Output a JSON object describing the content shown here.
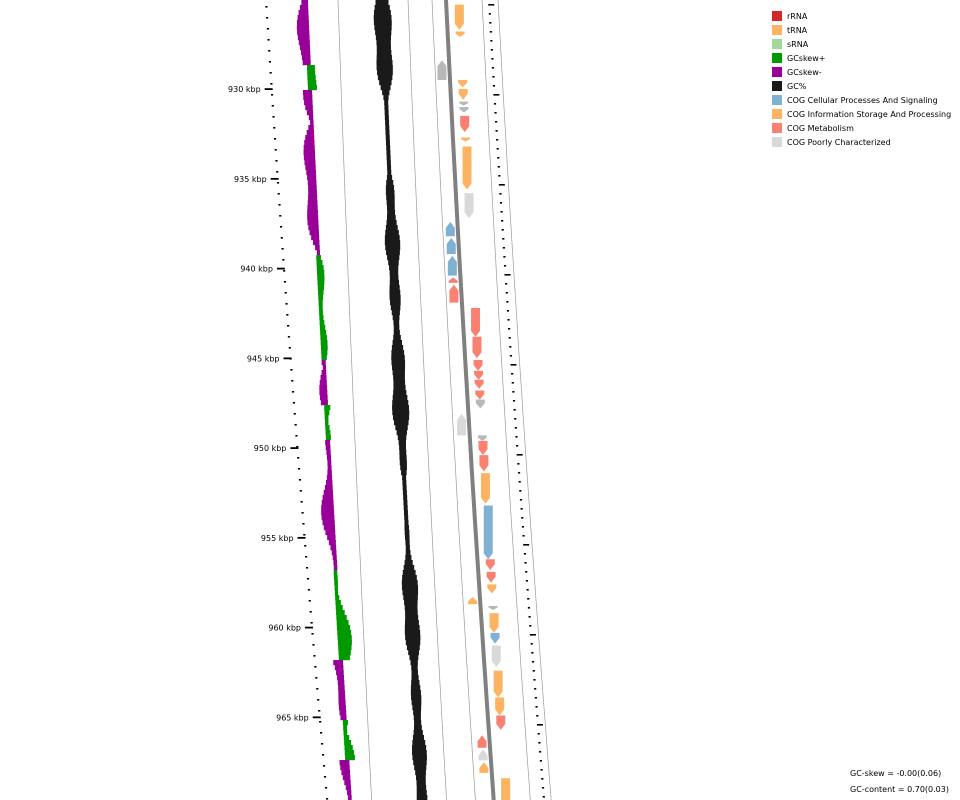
{
  "legend": [
    {
      "label": "rRNA",
      "color": "#d62728"
    },
    {
      "label": "tRNA",
      "color": "#fdb462"
    },
    {
      "label": "sRNA",
      "color": "#a1d99b"
    },
    {
      "label": "GCskew+",
      "color": "#009900"
    },
    {
      "label": "GCskew-",
      "color": "#990099"
    },
    {
      "label": "GC%",
      "color": "#1a1a1a"
    },
    {
      "label": "COG Cellular Processes And Signaling",
      "color": "#80b1d3"
    },
    {
      "label": "COG Information Storage And Processing",
      "color": "#fdb462"
    },
    {
      "label": "COG Metabolism",
      "color": "#fa8072"
    },
    {
      "label": "COG Poorly Characterized",
      "color": "#d9d9d9"
    }
  ],
  "stats": {
    "gc_skew": "GC-skew = -0.00(0.06)",
    "gc_content": "GC-content = 0.70(0.03)"
  },
  "axis": {
    "unit": "kbp",
    "labels": [
      "930 kbp",
      "935 kbp",
      "940 kbp",
      "945 kbp",
      "950 kbp",
      "955 kbp",
      "960 kbp",
      "965 kbp"
    ],
    "label_positions_kbp": [
      930,
      935,
      940,
      945,
      950,
      955,
      960,
      965
    ]
  },
  "features": [
    {
      "start": 925.3,
      "end": 926.7,
      "strand": "+",
      "cog": "COG Information Storage And Processing"
    },
    {
      "start": 926.8,
      "end": 927.1,
      "strand": "+",
      "cog": "COG Information Storage And Processing"
    },
    {
      "start": 928.4,
      "end": 929.5,
      "strand": "-",
      "cog": "other"
    },
    {
      "start": 929.5,
      "end": 929.9,
      "strand": "+",
      "cog": "COG Information Storage And Processing"
    },
    {
      "start": 930.0,
      "end": 930.6,
      "strand": "+",
      "cog": "COG Information Storage And Processing"
    },
    {
      "start": 930.7,
      "end": 930.9,
      "strand": "+",
      "cog": "other"
    },
    {
      "start": 931.0,
      "end": 931.3,
      "strand": "+",
      "cog": "other"
    },
    {
      "start": 931.5,
      "end": 932.4,
      "strand": "+",
      "cog": "COG Metabolism"
    },
    {
      "start": 932.7,
      "end": 932.9,
      "strand": "+",
      "cog": "COG Information Storage And Processing"
    },
    {
      "start": 933.2,
      "end": 935.6,
      "strand": "+",
      "cog": "COG Information Storage And Processing"
    },
    {
      "start": 935.8,
      "end": 937.2,
      "strand": "+",
      "cog": "COG Poorly Characterized"
    },
    {
      "start": 937.4,
      "end": 938.2,
      "strand": "-",
      "cog": "COG Cellular Processes And Signaling"
    },
    {
      "start": 938.3,
      "end": 939.2,
      "strand": "-",
      "cog": "COG Cellular Processes And Signaling"
    },
    {
      "start": 939.3,
      "end": 940.4,
      "strand": "-",
      "cog": "COG Cellular Processes And Signaling"
    },
    {
      "start": 940.5,
      "end": 940.8,
      "strand": "-",
      "cog": "COG Metabolism"
    },
    {
      "start": 940.9,
      "end": 941.9,
      "strand": "-",
      "cog": "COG Metabolism"
    },
    {
      "start": 942.2,
      "end": 943.8,
      "strand": "+",
      "cog": "COG Metabolism"
    },
    {
      "start": 943.8,
      "end": 945.0,
      "strand": "+",
      "cog": "COG Metabolism"
    },
    {
      "start": 945.1,
      "end": 945.7,
      "strand": "+",
      "cog": "COG Metabolism"
    },
    {
      "start": 945.7,
      "end": 946.2,
      "strand": "+",
      "cog": "COG Metabolism"
    },
    {
      "start": 946.2,
      "end": 946.7,
      "strand": "+",
      "cog": "COG Metabolism"
    },
    {
      "start": 946.8,
      "end": 947.3,
      "strand": "+",
      "cog": "COG Metabolism"
    },
    {
      "start": 947.3,
      "end": 947.8,
      "strand": "+",
      "cog": "other"
    },
    {
      "start": 948.1,
      "end": 949.3,
      "strand": "-",
      "cog": "COG Poorly Characterized"
    },
    {
      "start": 949.3,
      "end": 949.6,
      "strand": "+",
      "cog": "other"
    },
    {
      "start": 949.6,
      "end": 950.4,
      "strand": "+",
      "cog": "COG Metabolism"
    },
    {
      "start": 950.4,
      "end": 951.3,
      "strand": "+",
      "cog": "COG Metabolism"
    },
    {
      "start": 951.4,
      "end": 953.1,
      "strand": "+",
      "cog": "COG Information Storage And Processing"
    },
    {
      "start": 953.2,
      "end": 956.2,
      "strand": "+",
      "cog": "COG Cellular Processes And Signaling"
    },
    {
      "start": 956.2,
      "end": 956.8,
      "strand": "+",
      "cog": "COG Metabolism"
    },
    {
      "start": 956.9,
      "end": 957.5,
      "strand": "+",
      "cog": "COG Metabolism"
    },
    {
      "start": 957.6,
      "end": 958.1,
      "strand": "+",
      "cog": "COG Information Storage And Processing"
    },
    {
      "start": 958.3,
      "end": 958.7,
      "strand": "-",
      "cog": "COG Information Storage And Processing"
    },
    {
      "start": 958.8,
      "end": 959.0,
      "strand": "+",
      "cog": "other"
    },
    {
      "start": 959.2,
      "end": 960.3,
      "strand": "+",
      "cog": "COG Information Storage And Processing"
    },
    {
      "start": 960.3,
      "end": 960.9,
      "strand": "+",
      "cog": "COG Cellular Processes And Signaling"
    },
    {
      "start": 961.0,
      "end": 962.2,
      "strand": "+",
      "cog": "COG Poorly Characterized"
    },
    {
      "start": 962.4,
      "end": 963.9,
      "strand": "+",
      "cog": "COG Information Storage And Processing"
    },
    {
      "start": 963.9,
      "end": 964.9,
      "strand": "+",
      "cog": "COG Information Storage And Processing"
    },
    {
      "start": 964.9,
      "end": 965.7,
      "strand": "+",
      "cog": "COG Metabolism"
    },
    {
      "start": 966.0,
      "end": 966.7,
      "strand": "-",
      "cog": "COG Metabolism"
    },
    {
      "start": 966.8,
      "end": 967.4,
      "strand": "-",
      "cog": "COG Poorly Characterized"
    },
    {
      "start": 967.5,
      "end": 968.1,
      "strand": "-",
      "cog": "COG Information Storage And Processing"
    },
    {
      "start": 968.4,
      "end": 970.0,
      "strand": "+",
      "cog": "COG Information Storage And Processing"
    }
  ]
}
